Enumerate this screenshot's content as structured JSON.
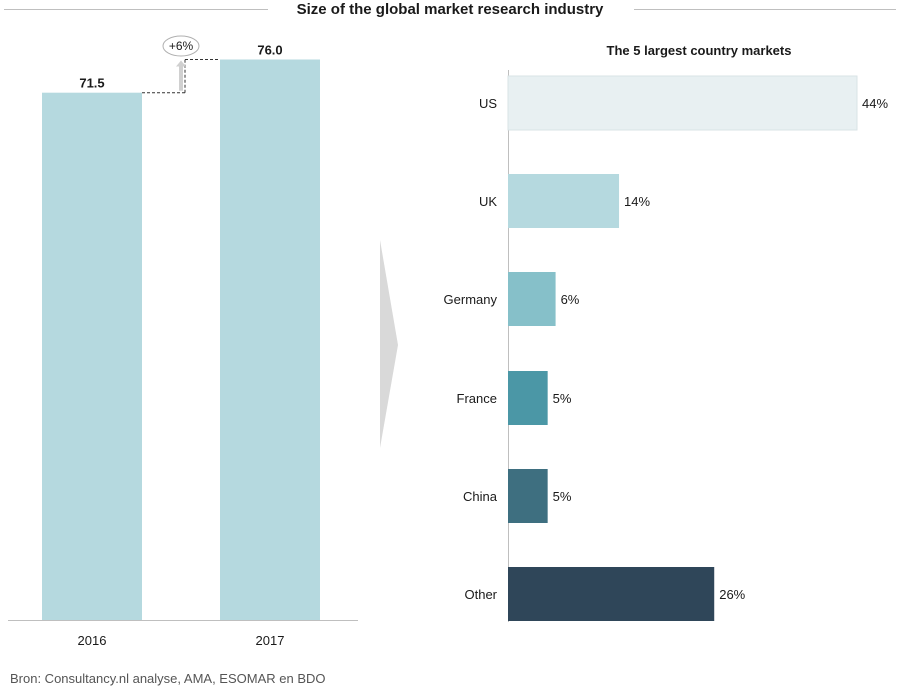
{
  "title": "Size of the global market research industry",
  "source": "Bron: Consultancy.nl analyse, AMA, ESOMAR en BDO",
  "colors": {
    "left_bar": "#b5d9df",
    "us": "#e8f0f2",
    "uk": "#b5d9df",
    "germany": "#86c0c9",
    "france": "#4b97a6",
    "china": "#3e6f80",
    "other": "#2f4659",
    "axis": "#bfbfbf",
    "arrow": "#d9d9d9",
    "growth_arrow": "#d0d0d0"
  },
  "chart_data": [
    {
      "type": "bar",
      "title": "",
      "categories": [
        "2016",
        "2017"
      ],
      "values": [
        71.5,
        76.0
      ],
      "value_labels": [
        "71.5",
        "76.0"
      ],
      "annotation": "+6%",
      "xlabel": "",
      "ylabel": "",
      "ylim": [
        0,
        80
      ],
      "grid": false
    },
    {
      "type": "bar",
      "orientation": "horizontal",
      "title": "The 5 largest country markets",
      "categories": [
        "US",
        "UK",
        "Germany",
        "France",
        "China",
        "Other"
      ],
      "values": [
        44,
        14,
        6,
        5,
        5,
        26
      ],
      "value_labels": [
        "44%",
        "14%",
        "6%",
        "5%",
        "5%",
        "26%"
      ],
      "color_keys": [
        "us",
        "uk",
        "germany",
        "france",
        "china",
        "other"
      ],
      "xlim": [
        0,
        44
      ],
      "grid": false
    }
  ]
}
